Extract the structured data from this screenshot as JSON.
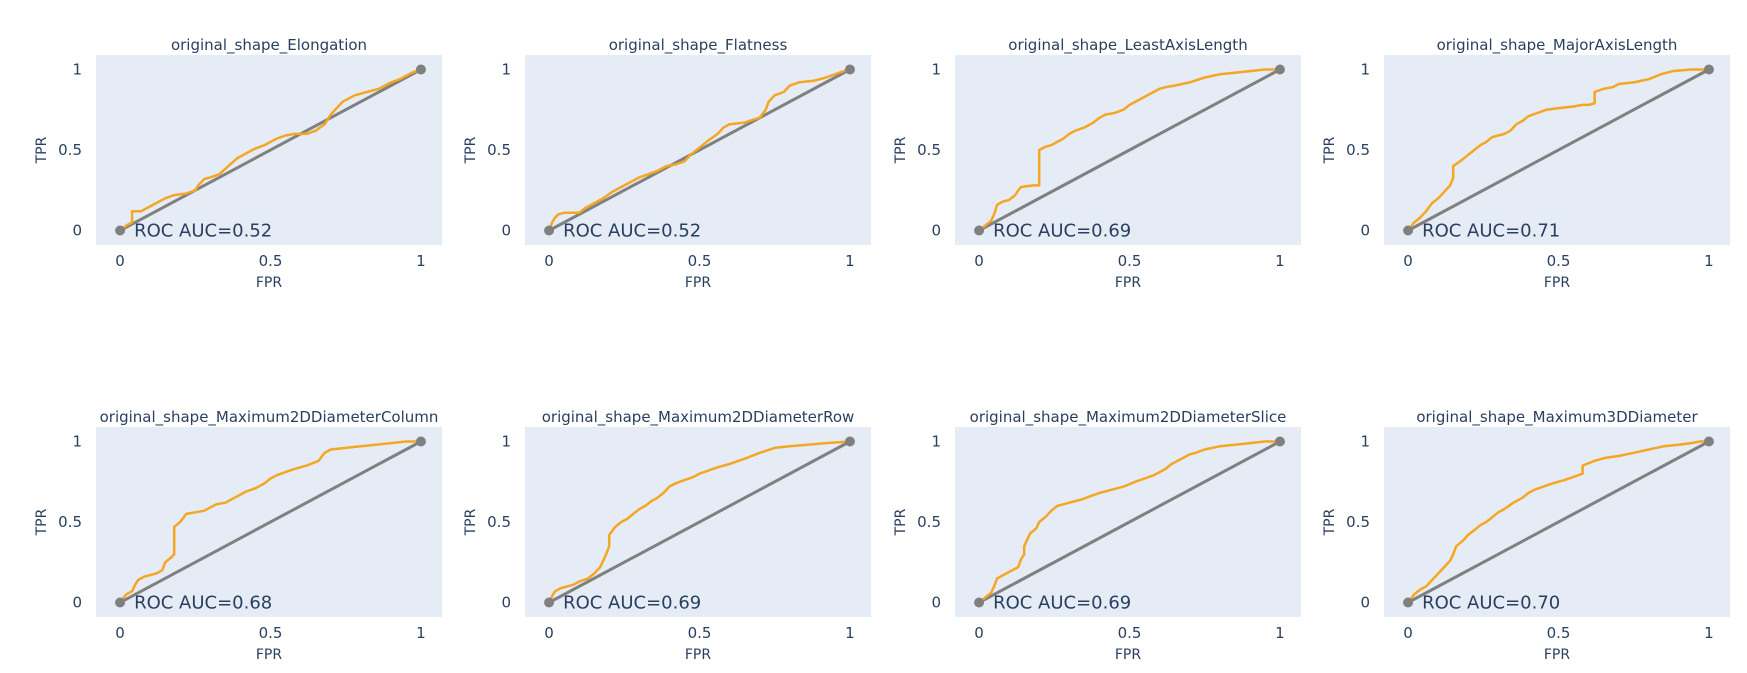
{
  "chart_data": [
    {
      "type": "line",
      "title": "original_shape_Elongation",
      "xlabel": "FPR",
      "ylabel": "TPR",
      "xlim": [
        -0.08,
        1.07
      ],
      "ylim": [
        -0.09,
        1.09
      ],
      "xticks": [
        0,
        0.5,
        1
      ],
      "xtick_labels": [
        "0",
        "0.5",
        "1"
      ],
      "yticks": [
        0,
        0.5,
        1
      ],
      "ytick_labels": [
        "0",
        "0.5",
        "1"
      ],
      "grid": false,
      "annotation": "ROC AUC=0.52",
      "colors": {
        "roc": "#f5a623",
        "diagonal": "#808080",
        "plot_bg": "#e5ecf6"
      },
      "series": [
        {
          "x": [
            0,
            0.02,
            0.04,
            0.04,
            0.07,
            0.09,
            0.1,
            0.13,
            0.15,
            0.18,
            0.22,
            0.25,
            0.26,
            0.28,
            0.3,
            0.33,
            0.36,
            0.39,
            0.42,
            0.45,
            0.48,
            0.5,
            0.52,
            0.55,
            0.58,
            0.62,
            0.65,
            0.68,
            0.7,
            0.72,
            0.74,
            0.78,
            0.82,
            0.86,
            0.9,
            0.93,
            0.95,
            0.97,
            1
          ],
          "y": [
            0,
            0.03,
            0.05,
            0.12,
            0.12,
            0.14,
            0.15,
            0.18,
            0.2,
            0.22,
            0.23,
            0.25,
            0.28,
            0.32,
            0.33,
            0.35,
            0.4,
            0.45,
            0.48,
            0.51,
            0.53,
            0.55,
            0.57,
            0.59,
            0.6,
            0.6,
            0.62,
            0.66,
            0.72,
            0.76,
            0.8,
            0.84,
            0.86,
            0.88,
            0.92,
            0.94,
            0.96,
            0.98,
            1
          ]
        },
        {
          "x": [
            0,
            1
          ],
          "y": [
            0,
            1
          ]
        }
      ]
    },
    {
      "type": "line",
      "title": "original_shape_Flatness",
      "xlabel": "FPR",
      "ylabel": "TPR",
      "xlim": [
        -0.08,
        1.07
      ],
      "ylim": [
        -0.09,
        1.09
      ],
      "xticks": [
        0,
        0.5,
        1
      ],
      "xtick_labels": [
        "0",
        "0.5",
        "1"
      ],
      "yticks": [
        0,
        0.5,
        1
      ],
      "ytick_labels": [
        "0",
        "0.5",
        "1"
      ],
      "grid": false,
      "annotation": "ROC AUC=0.52",
      "colors": {
        "roc": "#f5a623",
        "diagonal": "#808080",
        "plot_bg": "#e5ecf6"
      },
      "series": [
        {
          "x": [
            0,
            0.01,
            0.02,
            0.03,
            0.05,
            0.1,
            0.12,
            0.15,
            0.18,
            0.21,
            0.24,
            0.27,
            0.3,
            0.33,
            0.36,
            0.39,
            0.42,
            0.45,
            0.47,
            0.49,
            0.51,
            0.53,
            0.56,
            0.58,
            0.6,
            0.65,
            0.68,
            0.7,
            0.72,
            0.73,
            0.75,
            0.78,
            0.8,
            0.83,
            0.88,
            0.92,
            0.95,
            0.98,
            1
          ],
          "y": [
            0,
            0.05,
            0.08,
            0.1,
            0.11,
            0.11,
            0.14,
            0.17,
            0.2,
            0.24,
            0.27,
            0.3,
            0.33,
            0.35,
            0.37,
            0.4,
            0.41,
            0.43,
            0.47,
            0.5,
            0.53,
            0.56,
            0.6,
            0.64,
            0.66,
            0.67,
            0.69,
            0.7,
            0.75,
            0.8,
            0.84,
            0.86,
            0.9,
            0.92,
            0.93,
            0.95,
            0.97,
            0.99,
            1
          ]
        },
        {
          "x": [
            0,
            1
          ],
          "y": [
            0,
            1
          ]
        }
      ]
    },
    {
      "type": "line",
      "title": "original_shape_LeastAxisLength",
      "xlabel": "FPR",
      "ylabel": "TPR",
      "xlim": [
        -0.08,
        1.07
      ],
      "ylim": [
        -0.09,
        1.09
      ],
      "xticks": [
        0,
        0.5,
        1
      ],
      "xtick_labels": [
        "0",
        "0.5",
        "1"
      ],
      "yticks": [
        0,
        0.5,
        1
      ],
      "ytick_labels": [
        "0",
        "0.5",
        "1"
      ],
      "grid": false,
      "annotation": "ROC AUC=0.69",
      "colors": {
        "roc": "#f5a623",
        "diagonal": "#808080",
        "plot_bg": "#e5ecf6"
      },
      "series": [
        {
          "x": [
            0,
            0.02,
            0.04,
            0.05,
            0.06,
            0.08,
            0.1,
            0.12,
            0.13,
            0.14,
            0.18,
            0.2,
            0.2,
            0.22,
            0.24,
            0.26,
            0.28,
            0.3,
            0.32,
            0.35,
            0.38,
            0.4,
            0.42,
            0.45,
            0.48,
            0.5,
            0.52,
            0.55,
            0.58,
            0.6,
            0.62,
            0.65,
            0.7,
            0.75,
            0.8,
            0.85,
            0.9,
            0.95,
            1
          ],
          "y": [
            0,
            0.03,
            0.06,
            0.1,
            0.16,
            0.18,
            0.19,
            0.22,
            0.25,
            0.27,
            0.28,
            0.28,
            0.5,
            0.52,
            0.53,
            0.55,
            0.57,
            0.6,
            0.62,
            0.64,
            0.67,
            0.7,
            0.72,
            0.73,
            0.75,
            0.78,
            0.8,
            0.83,
            0.86,
            0.88,
            0.89,
            0.9,
            0.92,
            0.95,
            0.97,
            0.98,
            0.99,
            1,
            1
          ]
        },
        {
          "x": [
            0,
            1
          ],
          "y": [
            0,
            1
          ]
        }
      ]
    },
    {
      "type": "line",
      "title": "original_shape_MajorAxisLength",
      "xlabel": "FPR",
      "ylabel": "TPR",
      "xlim": [
        -0.08,
        1.07
      ],
      "ylim": [
        -0.09,
        1.09
      ],
      "xticks": [
        0,
        0.5,
        1
      ],
      "xtick_labels": [
        "0",
        "0.5",
        "1"
      ],
      "yticks": [
        0,
        0.5,
        1
      ],
      "ytick_labels": [
        "0",
        "0.5",
        "1"
      ],
      "grid": false,
      "annotation": "ROC AUC=0.71",
      "colors": {
        "roc": "#f5a623",
        "diagonal": "#808080",
        "plot_bg": "#e5ecf6"
      },
      "series": [
        {
          "x": [
            0,
            0.02,
            0.04,
            0.06,
            0.08,
            0.1,
            0.12,
            0.14,
            0.15,
            0.15,
            0.18,
            0.2,
            0.22,
            0.24,
            0.26,
            0.28,
            0.3,
            0.32,
            0.34,
            0.36,
            0.38,
            0.4,
            0.43,
            0.46,
            0.5,
            0.55,
            0.58,
            0.6,
            0.62,
            0.62,
            0.65,
            0.68,
            0.7,
            0.75,
            0.8,
            0.84,
            0.88,
            0.94,
            1
          ],
          "y": [
            0,
            0.05,
            0.08,
            0.12,
            0.17,
            0.2,
            0.24,
            0.28,
            0.33,
            0.4,
            0.44,
            0.47,
            0.5,
            0.53,
            0.55,
            0.58,
            0.59,
            0.6,
            0.62,
            0.66,
            0.68,
            0.71,
            0.73,
            0.75,
            0.76,
            0.77,
            0.78,
            0.78,
            0.79,
            0.86,
            0.88,
            0.89,
            0.91,
            0.92,
            0.94,
            0.97,
            0.99,
            1,
            1
          ]
        },
        {
          "x": [
            0,
            1
          ],
          "y": [
            0,
            1
          ]
        }
      ]
    },
    {
      "type": "line",
      "title": "original_shape_Maximum2DDiameterColumn",
      "xlabel": "FPR",
      "ylabel": "TPR",
      "xlim": [
        -0.08,
        1.07
      ],
      "ylim": [
        -0.09,
        1.09
      ],
      "xticks": [
        0,
        0.5,
        1
      ],
      "xtick_labels": [
        "0",
        "0.5",
        "1"
      ],
      "yticks": [
        0,
        0.5,
        1
      ],
      "ytick_labels": [
        "0",
        "0.5",
        "1"
      ],
      "grid": false,
      "annotation": "ROC AUC=0.68",
      "colors": {
        "roc": "#f5a623",
        "diagonal": "#808080",
        "plot_bg": "#e5ecf6"
      },
      "series": [
        {
          "x": [
            0,
            0.02,
            0.04,
            0.05,
            0.06,
            0.08,
            0.1,
            0.12,
            0.14,
            0.15,
            0.17,
            0.18,
            0.18,
            0.2,
            0.22,
            0.25,
            0.28,
            0.3,
            0.32,
            0.35,
            0.38,
            0.4,
            0.42,
            0.45,
            0.48,
            0.5,
            0.52,
            0.55,
            0.58,
            0.62,
            0.66,
            0.68,
            0.7,
            0.75,
            0.8,
            0.85,
            0.9,
            0.95,
            1
          ],
          "y": [
            0,
            0.05,
            0.07,
            0.11,
            0.14,
            0.16,
            0.17,
            0.18,
            0.2,
            0.25,
            0.28,
            0.3,
            0.47,
            0.5,
            0.55,
            0.56,
            0.57,
            0.59,
            0.61,
            0.62,
            0.65,
            0.67,
            0.69,
            0.71,
            0.74,
            0.77,
            0.79,
            0.81,
            0.83,
            0.85,
            0.88,
            0.93,
            0.95,
            0.96,
            0.97,
            0.98,
            0.99,
            1,
            1
          ]
        },
        {
          "x": [
            0,
            1
          ],
          "y": [
            0,
            1
          ]
        }
      ]
    },
    {
      "type": "line",
      "title": "original_shape_Maximum2DDiameterRow",
      "xlabel": "FPR",
      "ylabel": "TPR",
      "xlim": [
        -0.08,
        1.07
      ],
      "ylim": [
        -0.09,
        1.09
      ],
      "xticks": [
        0,
        0.5,
        1
      ],
      "xtick_labels": [
        "0",
        "0.5",
        "1"
      ],
      "yticks": [
        0,
        0.5,
        1
      ],
      "ytick_labels": [
        "0",
        "0.5",
        "1"
      ],
      "grid": false,
      "annotation": "ROC AUC=0.69",
      "colors": {
        "roc": "#f5a623",
        "diagonal": "#808080",
        "plot_bg": "#e5ecf6"
      },
      "series": [
        {
          "x": [
            0,
            0.01,
            0.02,
            0.04,
            0.06,
            0.08,
            0.1,
            0.13,
            0.15,
            0.17,
            0.18,
            0.19,
            0.2,
            0.2,
            0.22,
            0.24,
            0.26,
            0.28,
            0.3,
            0.32,
            0.34,
            0.36,
            0.38,
            0.4,
            0.42,
            0.45,
            0.48,
            0.5,
            0.53,
            0.56,
            0.6,
            0.63,
            0.66,
            0.7,
            0.75,
            0.8,
            0.86,
            0.92,
            1
          ],
          "y": [
            0,
            0.04,
            0.07,
            0.09,
            0.1,
            0.11,
            0.13,
            0.15,
            0.18,
            0.22,
            0.26,
            0.3,
            0.35,
            0.42,
            0.47,
            0.5,
            0.52,
            0.55,
            0.58,
            0.6,
            0.63,
            0.65,
            0.68,
            0.72,
            0.74,
            0.76,
            0.78,
            0.8,
            0.82,
            0.84,
            0.86,
            0.88,
            0.9,
            0.93,
            0.96,
            0.97,
            0.98,
            0.99,
            1
          ]
        },
        {
          "x": [
            0,
            1
          ],
          "y": [
            0,
            1
          ]
        }
      ]
    },
    {
      "type": "line",
      "title": "original_shape_Maximum2DDiameterSlice",
      "xlabel": "FPR",
      "ylabel": "TPR",
      "xlim": [
        -0.08,
        1.07
      ],
      "ylim": [
        -0.09,
        1.09
      ],
      "xticks": [
        0,
        0.5,
        1
      ],
      "xtick_labels": [
        "0",
        "0.5",
        "1"
      ],
      "yticks": [
        0,
        0.5,
        1
      ],
      "ytick_labels": [
        "0",
        "0.5",
        "1"
      ],
      "grid": false,
      "annotation": "ROC AUC=0.69",
      "colors": {
        "roc": "#f5a623",
        "diagonal": "#808080",
        "plot_bg": "#e5ecf6"
      },
      "series": [
        {
          "x": [
            0,
            0.02,
            0.04,
            0.05,
            0.06,
            0.08,
            0.1,
            0.13,
            0.14,
            0.15,
            0.15,
            0.17,
            0.19,
            0.2,
            0.22,
            0.24,
            0.26,
            0.3,
            0.34,
            0.37,
            0.4,
            0.44,
            0.48,
            0.52,
            0.55,
            0.58,
            0.6,
            0.62,
            0.64,
            0.66,
            0.68,
            0.7,
            0.72,
            0.75,
            0.8,
            0.85,
            0.9,
            0.95,
            1
          ],
          "y": [
            0,
            0.03,
            0.06,
            0.1,
            0.15,
            0.17,
            0.19,
            0.22,
            0.27,
            0.3,
            0.35,
            0.43,
            0.46,
            0.5,
            0.53,
            0.57,
            0.6,
            0.62,
            0.64,
            0.66,
            0.68,
            0.7,
            0.72,
            0.75,
            0.77,
            0.79,
            0.81,
            0.83,
            0.86,
            0.88,
            0.9,
            0.92,
            0.93,
            0.95,
            0.97,
            0.98,
            0.99,
            1,
            1
          ]
        },
        {
          "x": [
            0,
            1
          ],
          "y": [
            0,
            1
          ]
        }
      ]
    },
    {
      "type": "line",
      "title": "original_shape_Maximum3DDiameter",
      "xlabel": "FPR",
      "ylabel": "TPR",
      "xlim": [
        -0.08,
        1.07
      ],
      "ylim": [
        -0.09,
        1.09
      ],
      "xticks": [
        0,
        0.5,
        1
      ],
      "xtick_labels": [
        "0",
        "0.5",
        "1"
      ],
      "yticks": [
        0,
        0.5,
        1
      ],
      "ytick_labels": [
        "0",
        "0.5",
        "1"
      ],
      "grid": false,
      "annotation": "ROC AUC=0.70",
      "colors": {
        "roc": "#f5a623",
        "diagonal": "#808080",
        "plot_bg": "#e5ecf6"
      },
      "series": [
        {
          "x": [
            0,
            0.02,
            0.04,
            0.06,
            0.08,
            0.1,
            0.12,
            0.14,
            0.15,
            0.16,
            0.18,
            0.2,
            0.22,
            0.24,
            0.26,
            0.28,
            0.3,
            0.32,
            0.35,
            0.38,
            0.4,
            0.42,
            0.45,
            0.48,
            0.5,
            0.52,
            0.55,
            0.58,
            0.58,
            0.62,
            0.66,
            0.7,
            0.75,
            0.8,
            0.85,
            0.9,
            0.94,
            0.97,
            1
          ],
          "y": [
            0,
            0.05,
            0.08,
            0.1,
            0.14,
            0.18,
            0.22,
            0.26,
            0.3,
            0.35,
            0.38,
            0.42,
            0.45,
            0.48,
            0.5,
            0.53,
            0.56,
            0.58,
            0.62,
            0.65,
            0.68,
            0.7,
            0.72,
            0.74,
            0.75,
            0.76,
            0.78,
            0.8,
            0.85,
            0.88,
            0.9,
            0.91,
            0.93,
            0.95,
            0.97,
            0.98,
            0.99,
            1,
            1
          ]
        },
        {
          "x": [
            0,
            1
          ],
          "y": [
            0,
            1
          ]
        }
      ]
    }
  ]
}
